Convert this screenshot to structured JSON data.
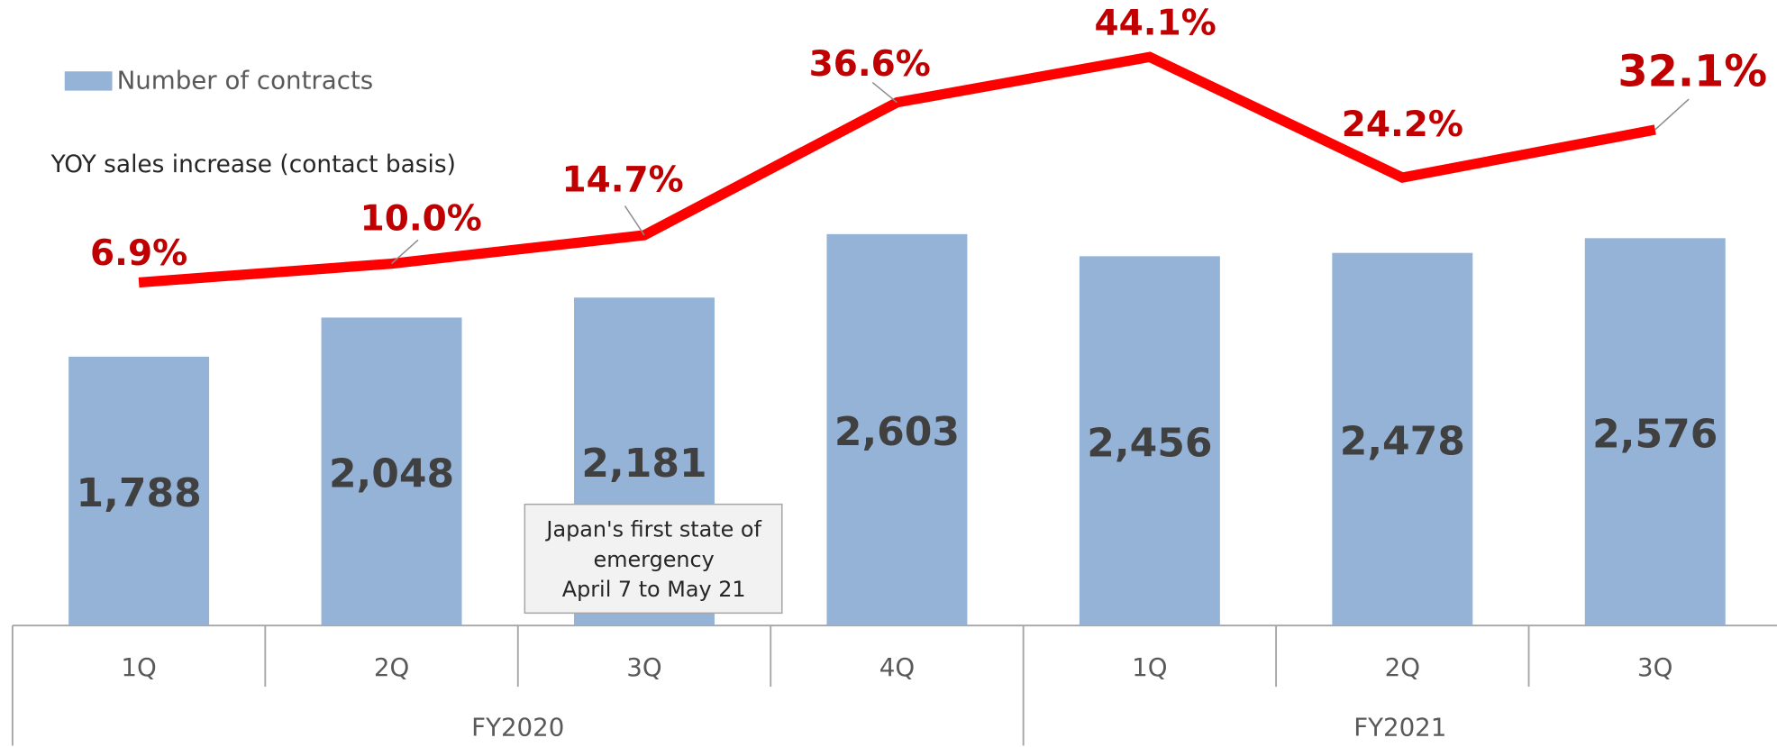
{
  "chart_data": {
    "type": "bar_line",
    "category_groups": [
      {
        "name": "FY2020",
        "categories": [
          "1Q",
          "2Q",
          "3Q",
          "4Q"
        ]
      },
      {
        "name": "FY2021",
        "categories": [
          "1Q",
          "2Q",
          "3Q"
        ]
      }
    ],
    "series": [
      {
        "name": "Number of contracts",
        "type": "bar",
        "color": "#95b3d7",
        "values": [
          1788,
          2048,
          2181,
          2603,
          2456,
          2478,
          2576
        ],
        "value_labels": [
          "1,788",
          "2,048",
          "2,181",
          "2,603",
          "2,456",
          "2,478",
          "2,576"
        ]
      },
      {
        "name": "YOY sales increase (contact basis)",
        "type": "line",
        "color": "#ff0000",
        "axis": "y2",
        "values": [
          6.9,
          10.0,
          14.7,
          36.6,
          44.1,
          24.2,
          32.1
        ],
        "value_labels": [
          "6.9%",
          "10.0%",
          "14.7%",
          "36.6%",
          "44.1%",
          "24.2%",
          "32.1%"
        ]
      }
    ],
    "ylim": [
      0,
      4160
    ],
    "y2lim": [
      -49.7,
      53.5
    ],
    "annotation": [
      "Japan's first state of",
      "emergency",
      "April 7 to May 21"
    ]
  }
}
